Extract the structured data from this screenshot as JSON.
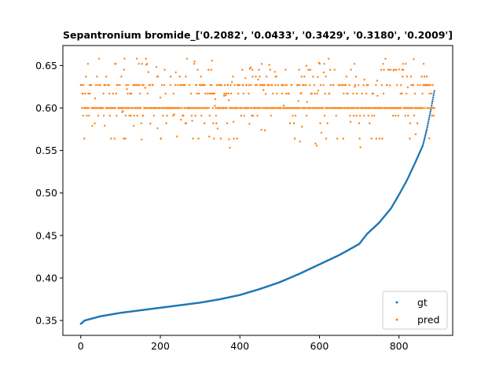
{
  "chart_data": {
    "type": "scatter",
    "title": "Sepantronium bromide_['0.2082', '0.0433', '0.3429', '0.3180', '0.2009']",
    "xlabel": "",
    "ylabel": "",
    "xlim": [
      -45,
      935
    ],
    "ylim": [
      0.3325,
      0.6735
    ],
    "xticks": [
      0,
      200,
      400,
      600,
      800
    ],
    "yticks": [
      0.35,
      0.4,
      0.45,
      0.5,
      0.55,
      0.6,
      0.65
    ],
    "grid": false,
    "legend_position": "bottom-right",
    "n_points": 890,
    "series": [
      {
        "name": "gt",
        "color": "#1f77b4",
        "description_points": [
          [
            0,
            0.346
          ],
          [
            10,
            0.35
          ],
          [
            50,
            0.355
          ],
          [
            100,
            0.359
          ],
          [
            150,
            0.362
          ],
          [
            200,
            0.365
          ],
          [
            250,
            0.368
          ],
          [
            300,
            0.371
          ],
          [
            350,
            0.375
          ],
          [
            400,
            0.38
          ],
          [
            450,
            0.387
          ],
          [
            500,
            0.395
          ],
          [
            550,
            0.405
          ],
          [
            600,
            0.416
          ],
          [
            650,
            0.427
          ],
          [
            700,
            0.44
          ],
          [
            720,
            0.452
          ],
          [
            750,
            0.465
          ],
          [
            780,
            0.482
          ],
          [
            800,
            0.498
          ],
          [
            820,
            0.515
          ],
          [
            840,
            0.535
          ],
          [
            860,
            0.556
          ],
          [
            870,
            0.575
          ],
          [
            880,
            0.598
          ],
          [
            889,
            0.62
          ]
        ]
      },
      {
        "name": "pred",
        "color": "#ff7f0e",
        "levels": [
          0.6,
          0.627,
          0.617,
          0.591,
          0.582,
          0.564,
          0.637,
          0.645,
          0.652,
          0.658
        ],
        "level_weights": [
          0.52,
          0.18,
          0.08,
          0.06,
          0.03,
          0.03,
          0.04,
          0.03,
          0.02,
          0.01
        ],
        "range": [
          0.552,
          0.659
        ]
      }
    ]
  }
}
